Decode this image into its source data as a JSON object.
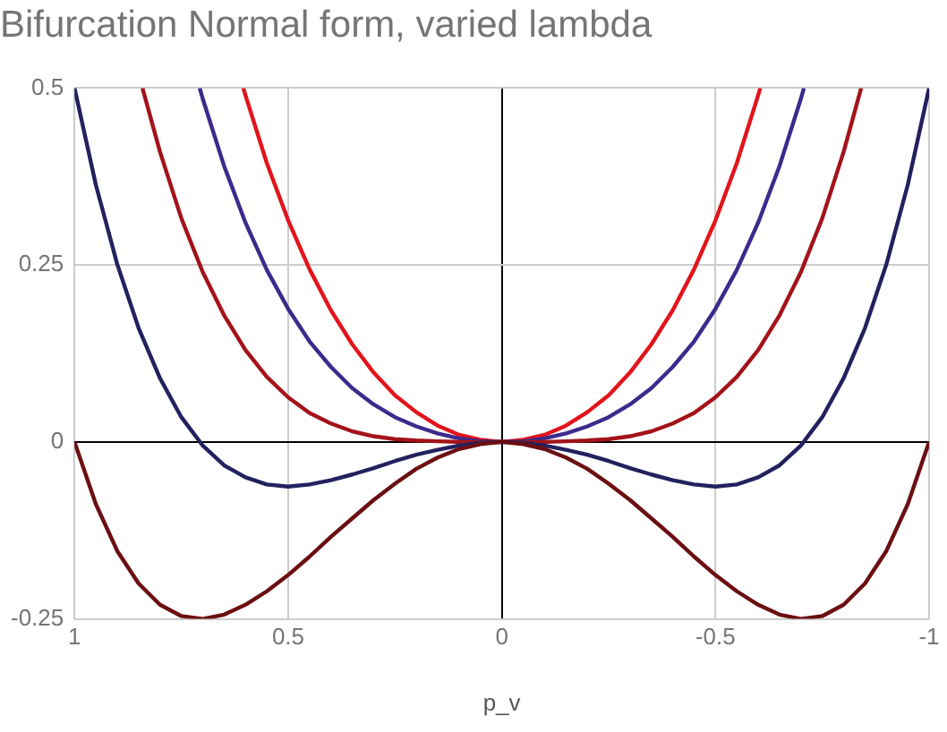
{
  "chart_data": {
    "type": "line",
    "title": "Bifurcation Normal form, varied lambda",
    "xlabel": "p_v",
    "xlim": [
      1,
      -1
    ],
    "xticks": [
      1,
      0.5,
      0,
      -0.5,
      -1
    ],
    "ylim": [
      -0.25,
      0.5
    ],
    "yticks": [
      -0.25,
      0,
      0.25,
      0.5
    ],
    "grid": true,
    "legend": false,
    "marker": "none",
    "line_style": "solid",
    "series": [
      {
        "color": "#6b0f12",
        "x": [
          1,
          0.95,
          0.9,
          0.85,
          0.8,
          0.75,
          0.7,
          0.65,
          0.6,
          0.55,
          0.5,
          0.45,
          0.4,
          0.35,
          0.3,
          0.25,
          0.2,
          0.15,
          0.1,
          0.05,
          0,
          -0.05,
          -0.1,
          -0.15,
          -0.2,
          -0.25,
          -0.3,
          -0.35,
          -0.4,
          -0.45,
          -0.5,
          -0.55,
          -0.6,
          -0.65,
          -0.7,
          -0.75,
          -0.8,
          -0.85,
          -0.9,
          -0.95,
          -1
        ],
        "values": [
          0,
          -0.088,
          -0.154,
          -0.2,
          -0.23,
          -0.246,
          -0.25,
          -0.244,
          -0.23,
          -0.211,
          -0.188,
          -0.162,
          -0.134,
          -0.108,
          -0.082,
          -0.059,
          -0.038,
          -0.022,
          -0.01,
          -0.003,
          0,
          -0.003,
          -0.01,
          -0.022,
          -0.038,
          -0.059,
          -0.082,
          -0.108,
          -0.134,
          -0.162,
          -0.188,
          -0.211,
          -0.23,
          -0.244,
          -0.25,
          -0.246,
          -0.23,
          -0.2,
          -0.154,
          -0.088,
          0
        ]
      },
      {
        "color": "#23215e",
        "x": [
          1,
          0.95,
          0.9,
          0.85,
          0.8,
          0.75,
          0.7,
          0.65,
          0.6,
          0.55,
          0.5,
          0.45,
          0.4,
          0.35,
          0.3,
          0.25,
          0.2,
          0.15,
          0.1,
          0.05,
          0,
          -0.05,
          -0.1,
          -0.15,
          -0.2,
          -0.25,
          -0.3,
          -0.35,
          -0.4,
          -0.45,
          -0.5,
          -0.55,
          -0.6,
          -0.65,
          -0.7,
          -0.75,
          -0.8,
          -0.85,
          -0.9,
          -0.95,
          -1
        ],
        "values": [
          0.5,
          0.363,
          0.251,
          0.161,
          0.09,
          0.035,
          -0.005,
          -0.033,
          -0.05,
          -0.06,
          -0.063,
          -0.06,
          -0.054,
          -0.046,
          -0.037,
          -0.027,
          -0.018,
          -0.011,
          -0.005,
          -0.001,
          0,
          -0.001,
          -0.005,
          -0.011,
          -0.018,
          -0.027,
          -0.037,
          -0.046,
          -0.054,
          -0.06,
          -0.063,
          -0.06,
          -0.05,
          -0.033,
          -0.005,
          0.035,
          0.09,
          0.161,
          0.251,
          0.363,
          0.5
        ]
      },
      {
        "color": "#a3131a",
        "x": [
          0.841,
          0.8,
          0.75,
          0.7,
          0.65,
          0.6,
          0.55,
          0.5,
          0.45,
          0.4,
          0.35,
          0.3,
          0.25,
          0.2,
          0.15,
          0.1,
          0.05,
          0,
          -0.05,
          -0.1,
          -0.15,
          -0.2,
          -0.25,
          -0.3,
          -0.35,
          -0.4,
          -0.45,
          -0.5,
          -0.55,
          -0.6,
          -0.65,
          -0.7,
          -0.75,
          -0.8,
          -0.841
        ],
        "values": [
          0.5,
          0.41,
          0.316,
          0.24,
          0.179,
          0.13,
          0.092,
          0.063,
          0.041,
          0.026,
          0.015,
          0.008,
          0.004,
          0.002,
          0.001,
          0,
          0,
          0,
          0,
          0,
          0.001,
          0.002,
          0.004,
          0.008,
          0.015,
          0.026,
          0.041,
          0.063,
          0.092,
          0.13,
          0.179,
          0.24,
          0.316,
          0.41,
          0.5
        ]
      },
      {
        "color": "#3d2a8c",
        "x": [
          0.707,
          0.7,
          0.65,
          0.6,
          0.55,
          0.5,
          0.45,
          0.4,
          0.35,
          0.3,
          0.25,
          0.2,
          0.15,
          0.1,
          0.05,
          0,
          -0.05,
          -0.1,
          -0.15,
          -0.2,
          -0.25,
          -0.3,
          -0.35,
          -0.4,
          -0.45,
          -0.5,
          -0.55,
          -0.6,
          -0.65,
          -0.7,
          -0.707
        ],
        "values": [
          0.5,
          0.485,
          0.39,
          0.31,
          0.243,
          0.188,
          0.142,
          0.106,
          0.076,
          0.053,
          0.035,
          0.022,
          0.012,
          0.005,
          0.001,
          0,
          0.001,
          0.005,
          0.012,
          0.022,
          0.035,
          0.053,
          0.076,
          0.106,
          0.142,
          0.188,
          0.243,
          0.31,
          0.39,
          0.485,
          0.5
        ]
      },
      {
        "color": "#e3141b",
        "x": [
          0.605,
          0.6,
          0.55,
          0.5,
          0.45,
          0.4,
          0.35,
          0.3,
          0.25,
          0.2,
          0.15,
          0.1,
          0.05,
          0,
          -0.05,
          -0.1,
          -0.15,
          -0.2,
          -0.25,
          -0.3,
          -0.35,
          -0.4,
          -0.45,
          -0.5,
          -0.55,
          -0.6,
          -0.605
        ],
        "values": [
          0.5,
          0.49,
          0.394,
          0.313,
          0.244,
          0.186,
          0.138,
          0.098,
          0.066,
          0.042,
          0.023,
          0.01,
          0.003,
          0,
          0.003,
          0.01,
          0.023,
          0.042,
          0.066,
          0.098,
          0.138,
          0.186,
          0.244,
          0.313,
          0.394,
          0.49,
          0.5
        ]
      }
    ]
  }
}
